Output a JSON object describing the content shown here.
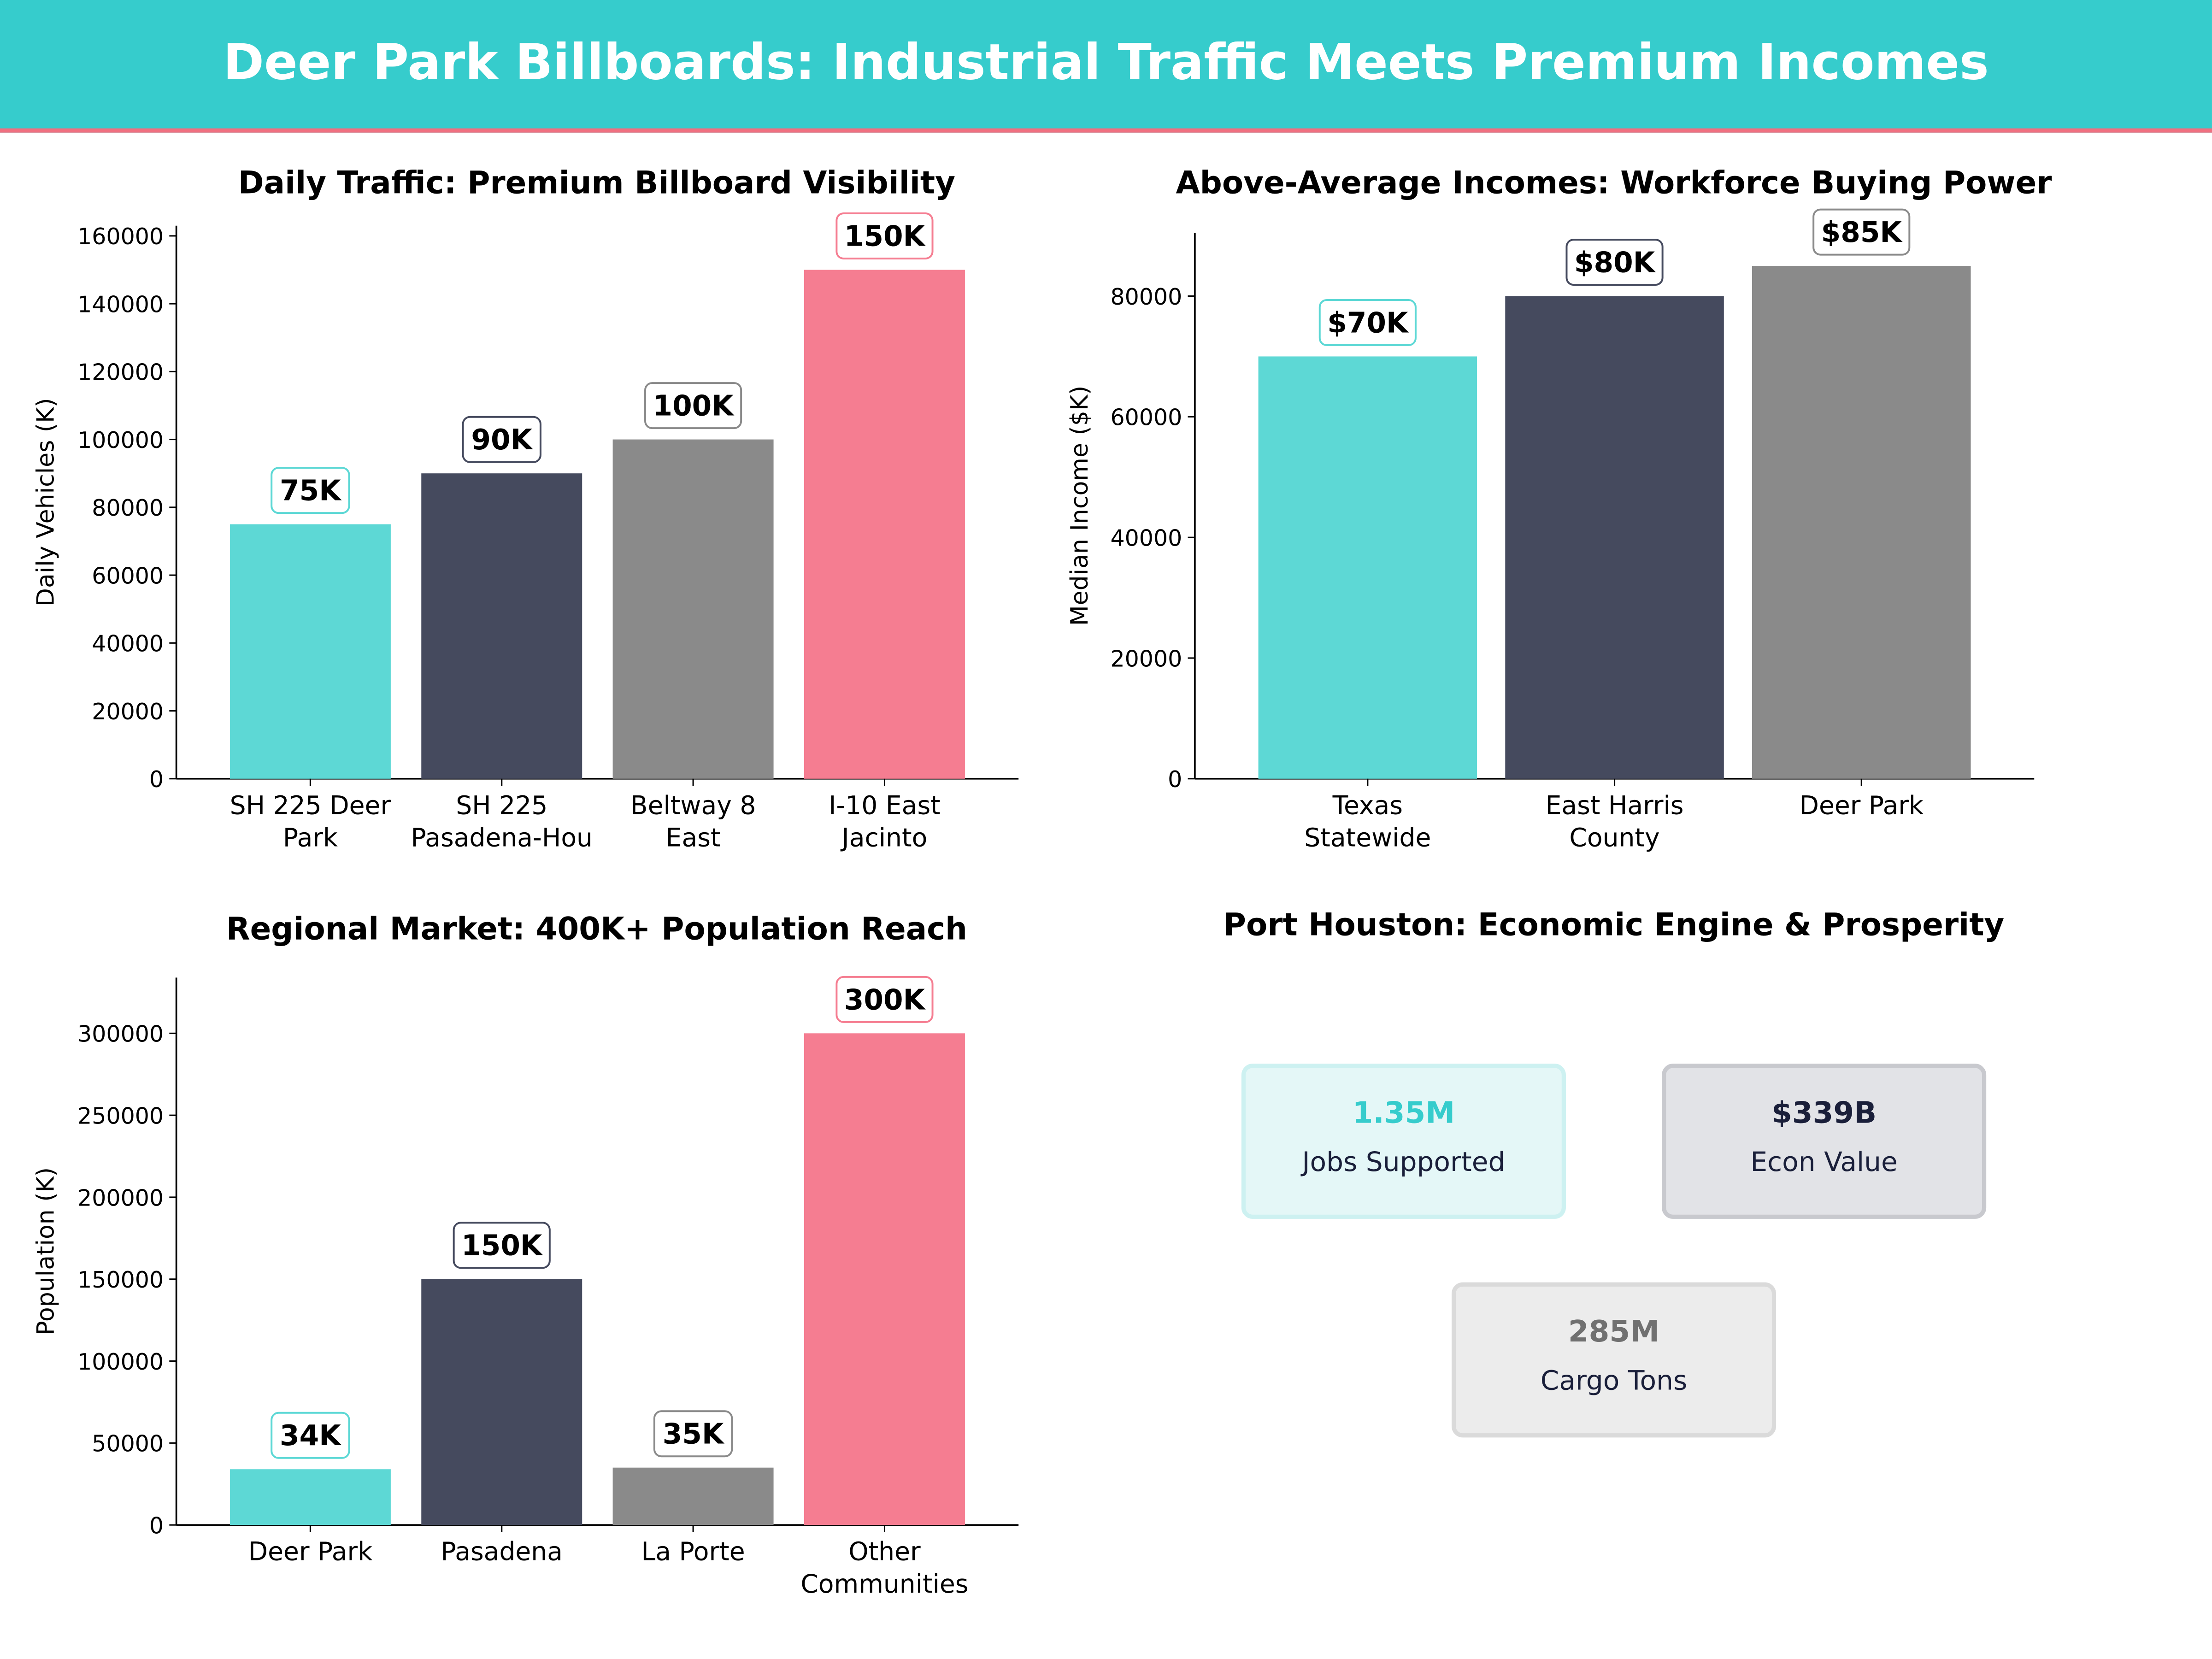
{
  "title": "Deer Park Billboards: Industrial Traffic Meets Premium Incomes",
  "colors": {
    "header": "#36cccc",
    "teal": "#5dd8d5",
    "navy": "#454a5e",
    "gray": "#8a8a8a",
    "pink": "#f57d91"
  },
  "chart_data": [
    {
      "type": "bar",
      "title": "Daily Traffic: Premium Billboard Visibility",
      "ylabel": "Daily Vehicles (K)",
      "categories": [
        "SH 225 Deer Park",
        "SH 225 Pasadena-Hou",
        "Beltway 8 East",
        "I-10 East Jacinto"
      ],
      "tick_lines": [
        [
          "SH 225 Deer",
          "Park"
        ],
        [
          "SH 225",
          "Pasadena-Hou"
        ],
        [
          "Beltway 8",
          "East"
        ],
        [
          "I-10 East",
          "Jacinto"
        ]
      ],
      "values": [
        75000,
        90000,
        100000,
        150000
      ],
      "data_labels": [
        "75K",
        "90K",
        "100K",
        "150K"
      ],
      "bar_colors": [
        "#5dd8d5",
        "#454a5e",
        "#8a8a8a",
        "#f57d91"
      ],
      "yticks": [
        0,
        20000,
        40000,
        60000,
        80000,
        100000,
        120000,
        140000,
        160000
      ],
      "ylim": [
        0,
        163000
      ]
    },
    {
      "type": "bar",
      "title": "Above-Average Incomes: Workforce Buying Power",
      "ylabel": "Median Income ($K)",
      "categories": [
        "Texas Statewide",
        "East Harris County",
        "Deer Park"
      ],
      "tick_lines": [
        [
          "Texas",
          "Statewide"
        ],
        [
          "East Harris",
          "County"
        ],
        [
          "Deer Park"
        ]
      ],
      "values": [
        70000,
        80000,
        85000
      ],
      "data_labels": [
        "$70K",
        "$80K",
        "$85K"
      ],
      "bar_colors": [
        "#5dd8d5",
        "#454a5e",
        "#8a8a8a"
      ],
      "yticks": [
        0,
        20000,
        40000,
        60000,
        80000
      ],
      "ylim": [
        0,
        90500
      ]
    },
    {
      "type": "bar",
      "title": "Regional Market: 400K+ Population Reach",
      "ylabel": "Population (K)",
      "categories": [
        "Deer Park",
        "Pasadena",
        "La Porte",
        "Other Communities"
      ],
      "tick_lines": [
        [
          "Deer Park"
        ],
        [
          "Pasadena"
        ],
        [
          "La Porte"
        ],
        [
          "Other",
          "Communities"
        ]
      ],
      "values": [
        34000,
        150000,
        35000,
        300000
      ],
      "data_labels": [
        "34K",
        "150K",
        "35K",
        "300K"
      ],
      "bar_colors": [
        "#5dd8d5",
        "#454a5e",
        "#8a8a8a",
        "#f57d91"
      ],
      "yticks": [
        0,
        50000,
        100000,
        150000,
        200000,
        250000,
        300000
      ],
      "ylim": [
        0,
        334000
      ]
    }
  ],
  "port": {
    "title": "Port Houston: Economic Engine & Prosperity",
    "cards": [
      {
        "value": "1.35M",
        "label": "Jobs Supported",
        "color": "#36cccc",
        "bg": "#e4f7f7",
        "border": "#cdf1f1"
      },
      {
        "value": "$339B",
        "label": "Econ Value",
        "color": "#1a1f3a",
        "bg": "#e2e3e7",
        "border": "#c8c9ce"
      },
      {
        "value": "285M",
        "label": "Cargo Tons",
        "color": "#707070",
        "bg": "#ececec",
        "border": "#dadada"
      }
    ]
  }
}
